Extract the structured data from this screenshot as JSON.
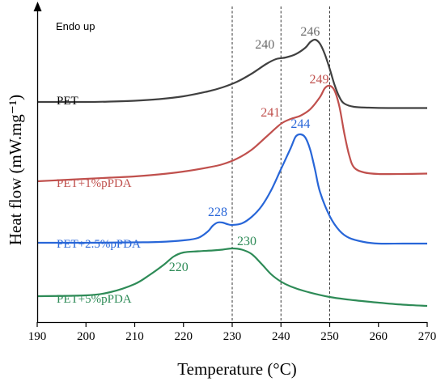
{
  "chart_data": {
    "type": "line",
    "title": "",
    "xlabel": "Temperature (°C)",
    "ylabel": "Heat flow (mW.mg⁻¹)",
    "xlim": [
      190,
      270
    ],
    "x_ticks": [
      "190",
      "200",
      "210",
      "220",
      "230",
      "240",
      "250",
      "260",
      "270"
    ],
    "annotation": "Endo up",
    "reference_lines_x": [
      230,
      240,
      250
    ],
    "series": [
      {
        "name": "PET",
        "color": "#404040",
        "points": [
          [
            190,
            116
          ],
          [
            200,
            116
          ],
          [
            205,
            115.5
          ],
          [
            210,
            114.5
          ],
          [
            215,
            112.5
          ],
          [
            220,
            109
          ],
          [
            225,
            103
          ],
          [
            228,
            98
          ],
          [
            231,
            91
          ],
          [
            234,
            81
          ],
          [
            237,
            69
          ],
          [
            239,
            63
          ],
          [
            241,
            61
          ],
          [
            243,
            57
          ],
          [
            245,
            49
          ],
          [
            246,
            42
          ],
          [
            247,
            39
          ],
          [
            248,
            44
          ],
          [
            249,
            57
          ],
          [
            250,
            75
          ],
          [
            251,
            95
          ],
          [
            252,
            110
          ],
          [
            253,
            118
          ],
          [
            255,
            122
          ],
          [
            258,
            123
          ],
          [
            262,
            123.5
          ],
          [
            270,
            123.5
          ]
        ],
        "peaks": [
          {
            "label": "240",
            "x": 240
          },
          {
            "label": "246",
            "x": 246
          }
        ]
      },
      {
        "name": "PET+1%pPDA",
        "color": "#c0504d",
        "points": [
          [
            190,
            214
          ],
          [
            195,
            212.5
          ],
          [
            200,
            211
          ],
          [
            205,
            209.5
          ],
          [
            210,
            208
          ],
          [
            215,
            205.5
          ],
          [
            220,
            202
          ],
          [
            225,
            197
          ],
          [
            228,
            193
          ],
          [
            231,
            186
          ],
          [
            234,
            175
          ],
          [
            237,
            159
          ],
          [
            240,
            143
          ],
          [
            242,
            137
          ],
          [
            244,
            133
          ],
          [
            246,
            125
          ],
          [
            248,
            110
          ],
          [
            249,
            99
          ],
          [
            250,
            96
          ],
          [
            251,
            102
          ],
          [
            252,
            122
          ],
          [
            253,
            155
          ],
          [
            254,
            182
          ],
          [
            255,
            197
          ],
          [
            257,
            203
          ],
          [
            260,
            205
          ],
          [
            265,
            205
          ],
          [
            270,
            204.5
          ]
        ],
        "peaks": [
          {
            "label": "241",
            "x": 241
          },
          {
            "label": "249",
            "x": 249
          }
        ]
      },
      {
        "name": "PET+2.5%pPDA",
        "color": "#2866d8",
        "points": [
          [
            190,
            290
          ],
          [
            200,
            290
          ],
          [
            210,
            289.5
          ],
          [
            215,
            289
          ],
          [
            220,
            287
          ],
          [
            223,
            284
          ],
          [
            225,
            276
          ],
          [
            226,
            269
          ],
          [
            227,
            265
          ],
          [
            228,
            265
          ],
          [
            229,
            267
          ],
          [
            230,
            268
          ],
          [
            232,
            266
          ],
          [
            234,
            258
          ],
          [
            236,
            245
          ],
          [
            238,
            225
          ],
          [
            240,
            199
          ],
          [
            242,
            173
          ],
          [
            243,
            159
          ],
          [
            244,
            156
          ],
          [
            245,
            160
          ],
          [
            246,
            175
          ],
          [
            247,
            200
          ],
          [
            248,
            227
          ],
          [
            250,
            257
          ],
          [
            252,
            275
          ],
          [
            254,
            284
          ],
          [
            257,
            289
          ],
          [
            260,
            291
          ],
          [
            265,
            291
          ],
          [
            270,
            291
          ]
        ],
        "peaks": [
          {
            "label": "228",
            "x": 228
          },
          {
            "label": "244",
            "x": 244
          }
        ]
      },
      {
        "name": "PET+5%pPDA",
        "color": "#2e8b57",
        "points": [
          [
            190,
            356
          ],
          [
            200,
            355
          ],
          [
            205,
            351
          ],
          [
            210,
            341
          ],
          [
            213,
            330
          ],
          [
            216,
            317
          ],
          [
            218,
            307
          ],
          [
            220,
            302
          ],
          [
            223,
            300.5
          ],
          [
            226,
            299.5
          ],
          [
            228,
            298.5
          ],
          [
            230,
            297
          ],
          [
            232,
            298.5
          ],
          [
            234,
            304
          ],
          [
            236,
            316
          ],
          [
            238,
            329
          ],
          [
            240,
            338
          ],
          [
            242,
            344
          ],
          [
            245,
            350
          ],
          [
            250,
            357
          ],
          [
            255,
            361
          ],
          [
            260,
            364
          ],
          [
            265,
            366.5
          ],
          [
            270,
            368
          ]
        ],
        "peaks": [
          {
            "label": "220",
            "x": 220
          },
          {
            "label": "230",
            "x": 230
          }
        ]
      }
    ]
  }
}
